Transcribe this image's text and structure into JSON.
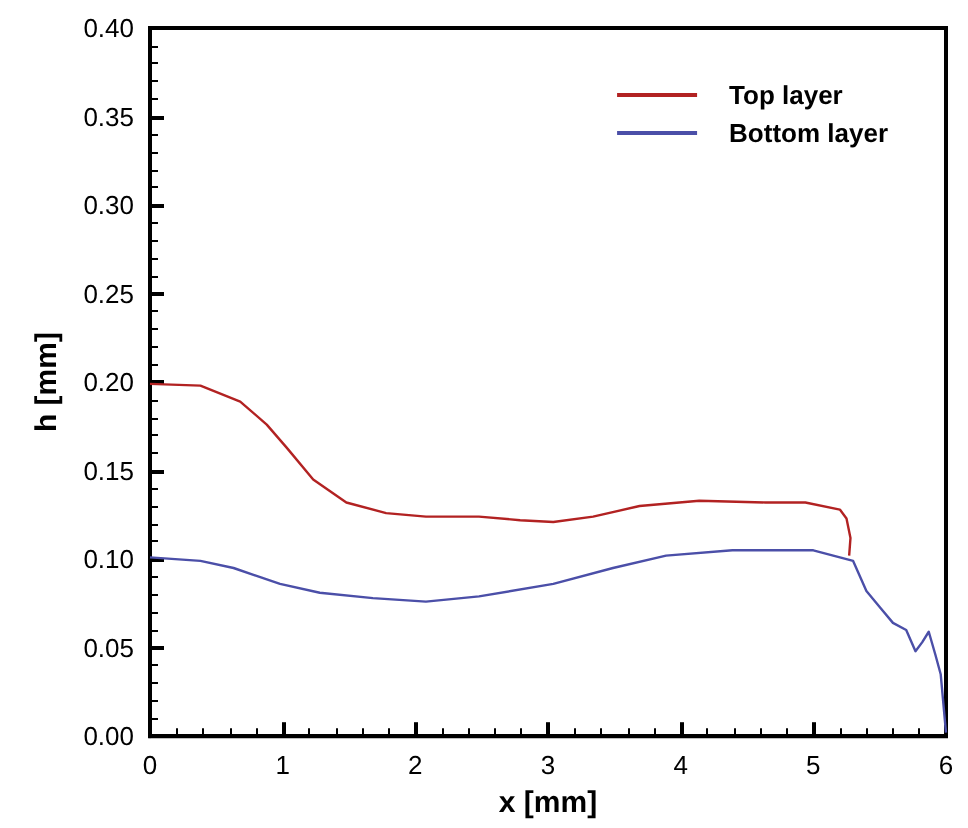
{
  "chart_data": {
    "type": "line",
    "xlabel": "x [mm]",
    "ylabel": "h [mm]",
    "xlim": [
      0,
      6
    ],
    "xticks": [
      0,
      1,
      2,
      3,
      4,
      5,
      6
    ],
    "ylim": [
      0,
      0.4
    ],
    "yticks": [
      {
        "value": 0,
        "label": "0.00"
      },
      {
        "value": 0.05,
        "label": "0.05"
      },
      {
        "value": 0.1,
        "label": "0.10"
      },
      {
        "value": 0.15,
        "label": "0.15"
      },
      {
        "value": 0.2,
        "label": "0.20"
      },
      {
        "value": 0.25,
        "label": "0.25"
      },
      {
        "value": 0.3,
        "label": "0.30"
      },
      {
        "value": 0.35,
        "label": "0.35"
      },
      {
        "value": 0.4,
        "label": "0.40"
      }
    ],
    "grid": false,
    "legend": "top right",
    "marker": "none",
    "line_style": "solid",
    "series": [
      {
        "name": "Top layer",
        "color": "#b22222",
        "x": [
          0,
          0.38,
          0.68,
          0.88,
          1.03,
          1.23,
          1.48,
          1.78,
          2.08,
          2.48,
          2.79,
          3.04,
          3.34,
          3.69,
          4.14,
          4.64,
          4.94,
          5.2,
          5.25,
          5.28,
          5.27
        ],
        "values": [
          0.199,
          0.198,
          0.189,
          0.176,
          0.163,
          0.145,
          0.132,
          0.126,
          0.124,
          0.124,
          0.122,
          0.121,
          0.124,
          0.13,
          0.133,
          0.132,
          0.132,
          0.128,
          0.123,
          0.112,
          0.102
        ]
      },
      {
        "name": "Bottom layer",
        "color": "#4b4fa8",
        "x": [
          0,
          0.38,
          0.63,
          0.98,
          1.28,
          1.68,
          2.08,
          2.48,
          3.04,
          3.49,
          3.89,
          4.39,
          5.0,
          5.15,
          5.3,
          5.4,
          5.5,
          5.6,
          5.7,
          5.77,
          5.82,
          5.87,
          5.92,
          5.96,
          6.0
        ],
        "values": [
          0.101,
          0.099,
          0.095,
          0.086,
          0.081,
          0.078,
          0.076,
          0.079,
          0.086,
          0.095,
          0.102,
          0.105,
          0.105,
          0.102,
          0.099,
          0.082,
          0.073,
          0.064,
          0.06,
          0.048,
          0.053,
          0.059,
          0.046,
          0.035,
          0.002
        ]
      }
    ]
  }
}
